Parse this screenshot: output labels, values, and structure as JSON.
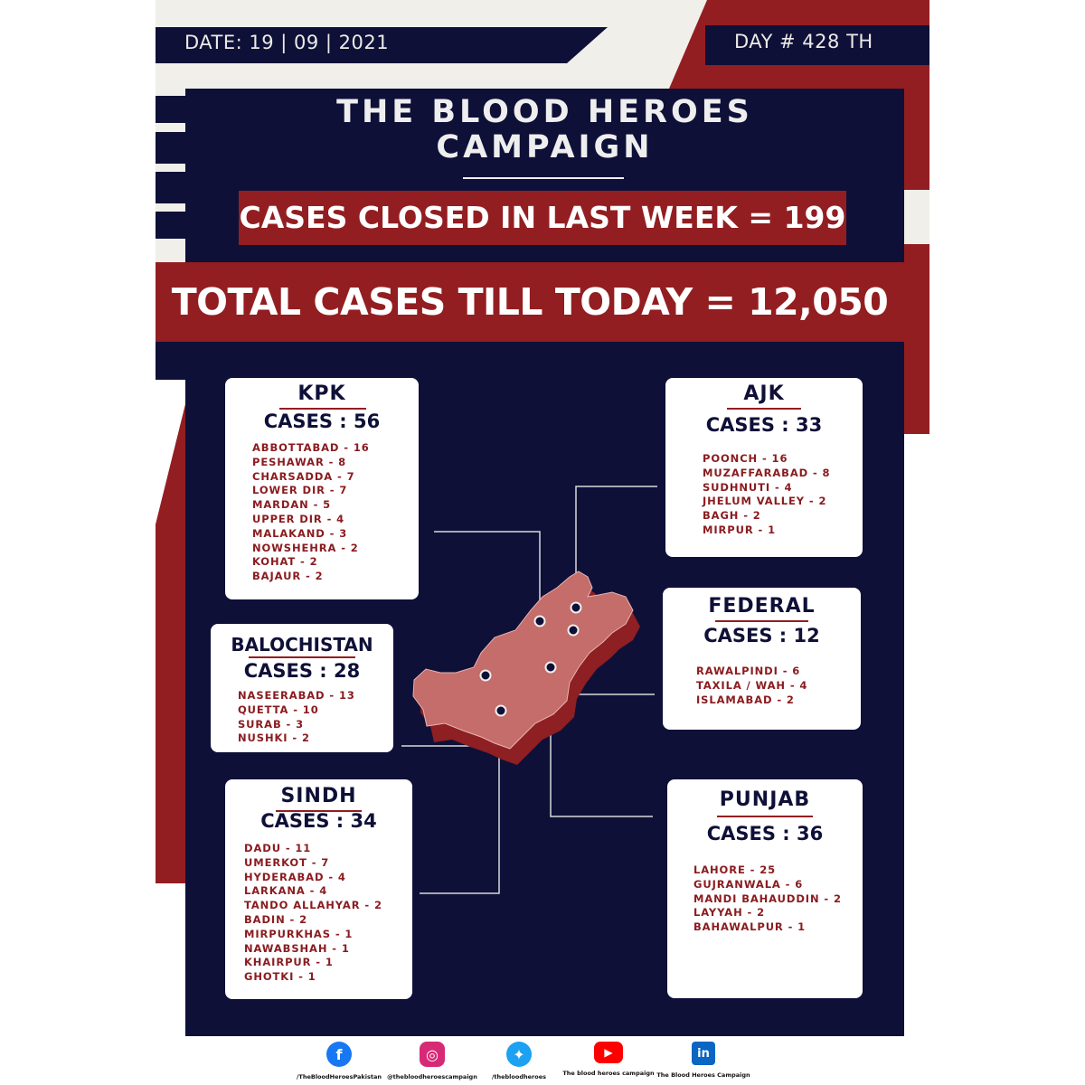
{
  "header": {
    "date": "DATE: 19 | 09 | 2021",
    "day": "DAY # 428 TH"
  },
  "title": {
    "line1": "THE BLOOD HEROES",
    "line2": "CAMPAIGN"
  },
  "weekly_cases": "CASES CLOSED IN LAST WEEK = 199",
  "total_cases": "TOTAL CASES TILL TODAY = 12,050",
  "regions": {
    "kpk": {
      "name": "KPK",
      "cases": "CASES : 56",
      "cities": [
        "ABBOTTABAD - 16",
        "PESHAWAR - 8",
        "CHARSADDA - 7",
        "LOWER DIR - 7",
        "MARDAN - 5",
        "UPPER DIR - 4",
        "MALAKAND - 3",
        "NOWSHEHRA - 2",
        "KOHAT - 2",
        "BAJAUR - 2"
      ]
    },
    "ajk": {
      "name": "AJK",
      "cases": "CASES : 33",
      "cities": [
        "POONCH - 16",
        "MUZAFFARABAD - 8",
        "SUDHNUTI - 4",
        "JHELUM VALLEY - 2",
        "BAGH - 2",
        "MIRPUR - 1"
      ]
    },
    "balochistan": {
      "name": "BALOCHISTAN",
      "cases": "CASES : 28",
      "cities": [
        "NASEERABAD - 13",
        "QUETTA - 10",
        "SURAB - 3",
        "NUSHKI - 2"
      ]
    },
    "federal": {
      "name": "FEDERAL",
      "cases": "CASES : 12",
      "cities": [
        "RAWALPINDI - 6",
        "TAXILA / WAH - 4",
        "ISLAMABAD - 2"
      ]
    },
    "sindh": {
      "name": "SINDH",
      "cases": "CASES : 34",
      "cities": [
        "DADU - 11",
        "UMERKOT - 7",
        "HYDERABAD - 4",
        "LARKANA - 4",
        "TANDO ALLAHYAR - 2",
        "BADIN - 2",
        "MIRPURKHAS - 1",
        "NAWABSHAH - 1",
        "KHAIRPUR - 1",
        "GHOTKI - 1"
      ]
    },
    "punjab": {
      "name": "PUNJAB",
      "cases": "CASES : 36",
      "cities": [
        "LAHORE - 25",
        "GUJRANWALA - 6",
        "MANDI BAHAUDDIN - 2",
        "LAYYAH - 2",
        "BAHAWALPUR - 1"
      ]
    }
  },
  "social": [
    {
      "icon": "facebook-icon",
      "glyph": "f",
      "color": "#1877f2",
      "handle": "/TheBloodHeroesPakistan"
    },
    {
      "icon": "instagram-icon",
      "glyph": "◎",
      "color": "#d62976",
      "handle": "@thebloodheroescampaign"
    },
    {
      "icon": "twitter-icon",
      "glyph": "✦",
      "color": "#1da1f2",
      "handle": "/thebloodheroes"
    },
    {
      "icon": "youtube-icon",
      "glyph": "▶",
      "color": "#ff0000",
      "handle": "The blood heroes campaign"
    },
    {
      "icon": "linkedin-icon",
      "glyph": "in",
      "color": "#0a66c2",
      "handle": "The Blood Heroes Campaign"
    }
  ],
  "colors": {
    "navy": "#0f1038",
    "red": "#931e21",
    "map_fill": "#c46d6b",
    "map_shadow": "#8e1f22"
  }
}
